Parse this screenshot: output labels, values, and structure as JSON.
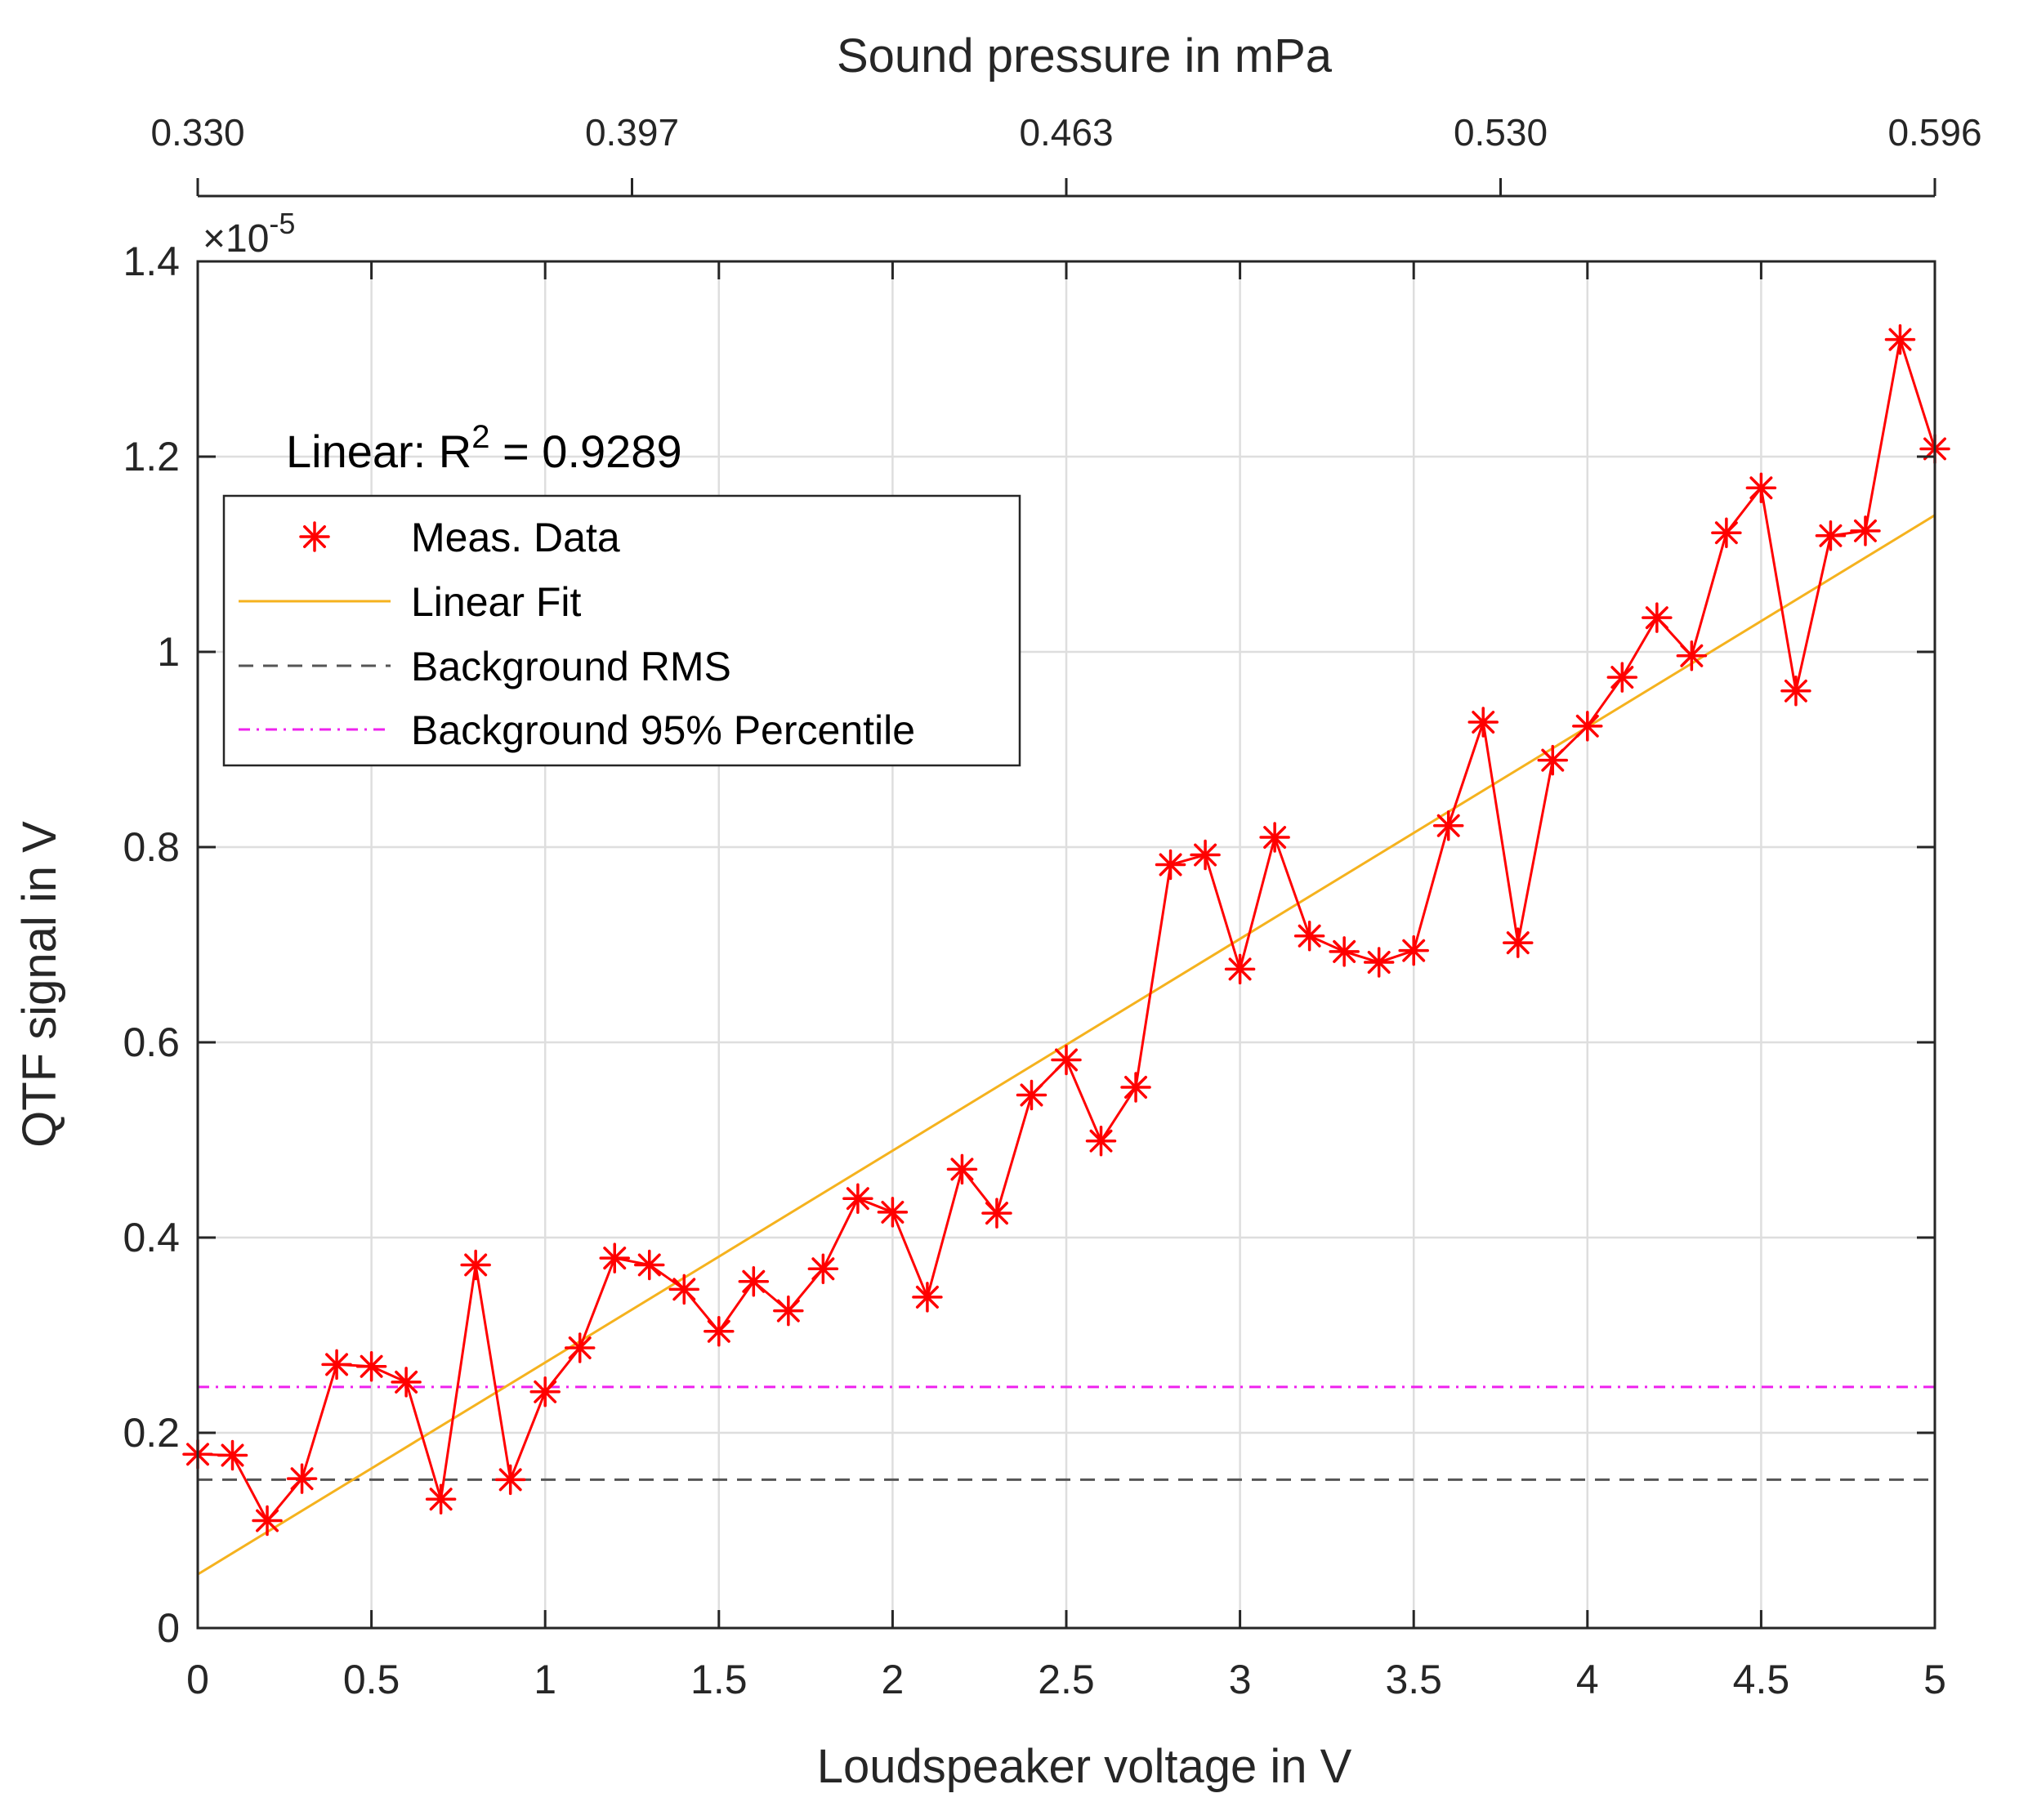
{
  "chart_data": {
    "type": "line",
    "title": "",
    "xlabel": "Loudspeaker voltage in V",
    "ylabel": "QTF signal in V",
    "top_xlabel": "Sound pressure in mPa",
    "y_exponent_label": "×10",
    "y_exponent_power": "-5",
    "xlim": [
      0,
      5
    ],
    "ylim": [
      0,
      1.4
    ],
    "grid": true,
    "x_ticks": [
      0,
      0.5,
      1,
      1.5,
      2,
      2.5,
      3,
      3.5,
      4,
      4.5,
      5
    ],
    "x_tick_labels": [
      "0",
      "0.5",
      "1",
      "1.5",
      "2",
      "2.5",
      "3",
      "3.5",
      "4",
      "4.5",
      "5"
    ],
    "y_ticks": [
      0,
      0.2,
      0.4,
      0.6,
      0.8,
      1,
      1.2,
      1.4
    ],
    "y_tick_labels": [
      "0",
      "0.2",
      "0.4",
      "0.6",
      "0.8",
      "1",
      "1.2",
      "1.4"
    ],
    "top_x_ticks": [
      0,
      1.25,
      2.5,
      3.75,
      5
    ],
    "top_x_tick_labels": [
      "0.330",
      "0.397",
      "0.463",
      "0.530",
      "0.596"
    ],
    "annotation": {
      "prefix": "Linear: R",
      "superscript": "2",
      "suffix": " = 0.9289"
    },
    "legend": {
      "position": "upper-left",
      "entries": [
        {
          "label": "Meas. Data",
          "style": "marker-line",
          "color": "#ff0000"
        },
        {
          "label": "Linear Fit",
          "style": "solid",
          "color": "#f5b21e"
        },
        {
          "label": "Background RMS",
          "style": "dashed",
          "color": "#555555"
        },
        {
          "label": "Background 95% Percentile",
          "style": "dashdot",
          "color": "#ee22ee"
        }
      ]
    },
    "series": [
      {
        "name": "Meas. Data",
        "color": "#ff0000",
        "x": [
          0,
          0.1,
          0.2,
          0.3,
          0.4,
          0.5,
          0.6,
          0.7,
          0.8,
          0.9,
          1.0,
          1.1,
          1.2,
          1.3,
          1.4,
          1.5,
          1.6,
          1.7,
          1.8,
          1.9,
          2.0,
          2.1,
          2.2,
          2.3,
          2.4,
          2.5,
          2.6,
          2.7,
          2.8,
          2.9,
          3.0,
          3.1,
          3.2,
          3.3,
          3.4,
          3.5,
          3.6,
          3.7,
          3.8,
          3.9,
          4.0,
          4.1,
          4.2,
          4.3,
          4.4,
          4.5,
          4.6,
          4.7,
          4.8,
          4.9,
          5.0
        ],
        "y": [
          0.178,
          0.177,
          0.11,
          0.153,
          0.27,
          0.268,
          0.252,
          0.132,
          0.372,
          0.152,
          0.242,
          0.287,
          0.379,
          0.372,
          0.347,
          0.304,
          0.355,
          0.325,
          0.368,
          0.44,
          0.426,
          0.339,
          0.47,
          0.425,
          0.546,
          0.582,
          0.499,
          0.554,
          0.782,
          0.792,
          0.675,
          0.81,
          0.709,
          0.693,
          0.682,
          0.694,
          0.822,
          0.928,
          0.702,
          0.889,
          0.924,
          0.974,
          1.035,
          0.996,
          1.122,
          1.168,
          0.96,
          1.119,
          1.124,
          1.32,
          1.208
        ]
      },
      {
        "name": "Linear Fit",
        "color": "#f5b21e",
        "x": [
          0,
          5
        ],
        "y": [
          0.055,
          1.14
        ]
      },
      {
        "name": "Background RMS",
        "color": "#555555",
        "x": [
          0,
          5
        ],
        "y": [
          0.152,
          0.152
        ]
      },
      {
        "name": "Background 95% Percentile",
        "color": "#ee22ee",
        "x": [
          0,
          5
        ],
        "y": [
          0.247,
          0.247
        ]
      }
    ]
  }
}
